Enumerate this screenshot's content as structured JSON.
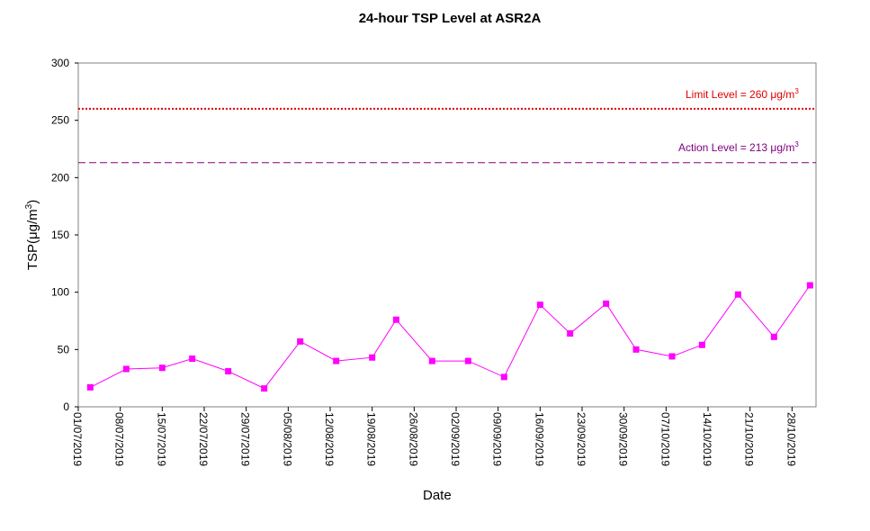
{
  "chart_data": {
    "type": "line",
    "title": "24-hour TSP Level at ASR2A",
    "xlabel": "Date",
    "ylabel": {
      "text": "TSP(μg/m",
      "sup": "3",
      "close": ")"
    },
    "ylim": [
      0,
      300
    ],
    "yticks": [
      "0",
      "50",
      "100",
      "150",
      "200",
      "250",
      "300"
    ],
    "xticks": [
      "01/07/2019",
      "08/07/2019",
      "15/07/2019",
      "22/07/2019",
      "29/07/2019",
      "05/08/2019",
      "12/08/2019",
      "19/08/2019",
      "26/08/2019",
      "02/09/2019",
      "09/09/2019",
      "16/09/2019",
      "23/09/2019",
      "30/09/2019",
      "07/10/2019",
      "14/10/2019",
      "21/10/2019",
      "28/10/2019"
    ],
    "series": [
      {
        "color": "#ff00ff",
        "marker": "square",
        "points": [
          {
            "x": "03/07/2019",
            "y": 17
          },
          {
            "x": "09/07/2019",
            "y": 33
          },
          {
            "x": "15/07/2019",
            "y": 34
          },
          {
            "x": "20/07/2019",
            "y": 42
          },
          {
            "x": "26/07/2019",
            "y": 31
          },
          {
            "x": "01/08/2019",
            "y": 16
          },
          {
            "x": "07/08/2019",
            "y": 57
          },
          {
            "x": "13/08/2019",
            "y": 40
          },
          {
            "x": "19/08/2019",
            "y": 43
          },
          {
            "x": "23/08/2019",
            "y": 76
          },
          {
            "x": "29/08/2019",
            "y": 40
          },
          {
            "x": "04/09/2019",
            "y": 40
          },
          {
            "x": "10/09/2019",
            "y": 26
          },
          {
            "x": "16/09/2019",
            "y": 89
          },
          {
            "x": "21/09/2019",
            "y": 64
          },
          {
            "x": "27/09/2019",
            "y": 90
          },
          {
            "x": "02/10/2019",
            "y": 50
          },
          {
            "x": "08/10/2019",
            "y": 44
          },
          {
            "x": "13/10/2019",
            "y": 54
          },
          {
            "x": "19/10/2019",
            "y": 98
          },
          {
            "x": "25/10/2019",
            "y": 61
          },
          {
            "x": "31/10/2019",
            "y": 106
          }
        ]
      }
    ],
    "reference_lines": [
      {
        "label": "Limit Level  = 260 μg/m",
        "sup": "3",
        "value": 260,
        "color": "#e00000",
        "style": "dotted"
      },
      {
        "label": "Action Level  = 213 μg/m",
        "sup": "3",
        "value": 213,
        "color": "#800080",
        "style": "dashed"
      }
    ],
    "grid": false,
    "legend": "none"
  }
}
